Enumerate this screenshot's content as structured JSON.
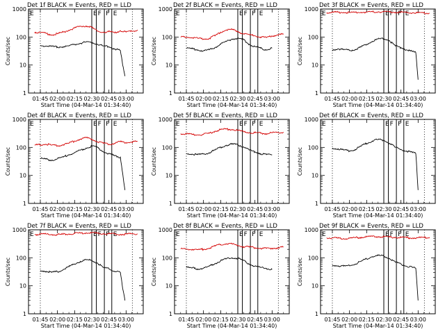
{
  "colors": {
    "black": "#000000",
    "red": "#d40000",
    "background": "#ffffff"
  },
  "chart_data": [
    {
      "type": "line",
      "title": "Det 1f BLACK = Events, RED = LLD",
      "xlabel": "Start Time (04-Mar-14 01:34:40)",
      "ylabel": "Counts/sec",
      "yscale": "log",
      "ylim": [
        1,
        1000
      ],
      "ytick_labels": [
        "1",
        "10",
        "100",
        "1000"
      ],
      "xtick_labels": [
        "01:45",
        "02:00",
        "02:15",
        "02:30",
        "02:45",
        "03:00"
      ],
      "flag_labels": [
        "E",
        "F",
        "F",
        "E"
      ],
      "series": [
        {
          "color": "#d40000",
          "x": [
            "01:40",
            "01:45",
            "01:50",
            "01:55",
            "02:00",
            "02:05",
            "02:10",
            "02:15",
            "02:20",
            "02:25",
            "02:30",
            "02:35",
            "02:40",
            "02:45",
            "02:50",
            "02:55",
            "03:00",
            "03:05",
            "03:10"
          ],
          "y": [
            150,
            145,
            135,
            120,
            130,
            150,
            175,
            210,
            240,
            250,
            220,
            160,
            150,
            155,
            140,
            170,
            150,
            160,
            180
          ]
        },
        {
          "color": "#000000",
          "x": [
            "01:45",
            "01:50",
            "01:55",
            "02:00",
            "02:05",
            "02:10",
            "02:15",
            "02:20",
            "02:25",
            "02:30",
            "02:35",
            "02:40",
            "02:45",
            "02:50",
            "02:55",
            "02:57",
            "02:59"
          ],
          "y": [
            50,
            48,
            46,
            44,
            45,
            48,
            55,
            60,
            66,
            65,
            55,
            48,
            45,
            38,
            33,
            10,
            4
          ]
        }
      ]
    },
    {
      "type": "line",
      "title": "Det 2f BLACK = Events, RED = LLD",
      "xlabel": "Start Time (04-Mar-14 01:34:40)",
      "ylabel": "Counts/sec",
      "yscale": "log",
      "ylim": [
        1,
        1000
      ],
      "ytick_labels": [
        "1",
        "10",
        "100",
        "1000"
      ],
      "xtick_labels": [
        "01:45",
        "02:00",
        "02:15",
        "02:30",
        "02:45",
        "03:00"
      ],
      "flag_labels": [
        "E",
        "F",
        "F",
        "E"
      ],
      "series": [
        {
          "color": "#d40000",
          "x": [
            "01:40",
            "01:45",
            "01:50",
            "01:55",
            "02:00",
            "02:05",
            "02:10",
            "02:15",
            "02:20",
            "02:25",
            "02:30",
            "02:35",
            "02:40",
            "02:45",
            "02:50",
            "02:55",
            "03:00",
            "03:05",
            "03:10"
          ],
          "y": [
            100,
            100,
            95,
            90,
            85,
            90,
            110,
            150,
            180,
            185,
            160,
            130,
            120,
            110,
            100,
            95,
            110,
            120,
            125
          ]
        },
        {
          "color": "#000000",
          "x": [
            "01:45",
            "01:50",
            "01:55",
            "02:00",
            "02:05",
            "02:10",
            "02:15",
            "02:20",
            "02:25",
            "02:30",
            "02:35",
            "02:40",
            "02:45",
            "02:50",
            "02:55",
            "03:00"
          ],
          "y": [
            40,
            38,
            35,
            32,
            35,
            42,
            55,
            70,
            85,
            90,
            80,
            55,
            45,
            40,
            35,
            40
          ]
        }
      ]
    },
    {
      "type": "line",
      "title": "Det 3f BLACK = Events, RED = LLD",
      "xlabel": "Start Time (04-Mar-14 01:34:40)",
      "ylabel": "Counts/sec",
      "yscale": "log",
      "ylim": [
        1,
        1000
      ],
      "ytick_labels": [
        "1",
        "10",
        "100",
        "1000"
      ],
      "xtick_labels": [
        "01:45",
        "02:00",
        "02:15",
        "02:30",
        "02:45",
        "03:00"
      ],
      "flag_labels": [
        "E",
        "F",
        "F",
        "E"
      ],
      "series": [
        {
          "color": "#d40000",
          "x": [
            "01:40",
            "01:45",
            "01:50",
            "01:55",
            "02:00",
            "02:05",
            "02:10",
            "02:15",
            "02:20",
            "02:25",
            "02:30",
            "02:35",
            "02:40",
            "02:45",
            "02:50",
            "02:55",
            "03:00",
            "03:05",
            "03:10"
          ],
          "y": [
            750,
            760,
            770,
            760,
            750,
            760,
            770,
            780,
            790,
            800,
            790,
            780,
            770,
            760,
            750,
            740,
            730,
            720,
            710
          ]
        },
        {
          "color": "#000000",
          "x": [
            "01:45",
            "01:50",
            "01:55",
            "02:00",
            "02:05",
            "02:10",
            "02:15",
            "02:20",
            "02:25",
            "02:30",
            "02:35",
            "02:40",
            "02:45",
            "02:50",
            "02:55",
            "02:58",
            "03:00"
          ],
          "y": [
            35,
            38,
            35,
            33,
            36,
            44,
            55,
            70,
            85,
            88,
            75,
            48,
            42,
            35,
            30,
            28,
            3
          ]
        }
      ]
    },
    {
      "type": "line",
      "title": "Det 4f BLACK = Events, RED = LLD",
      "xlabel": "Start Time (04-Mar-14 01:34:40)",
      "ylabel": "Counts/sec",
      "yscale": "log",
      "ylim": [
        1,
        1000
      ],
      "ytick_labels": [
        "1",
        "10",
        "100",
        "1000"
      ],
      "xtick_labels": [
        "01:45",
        "02:00",
        "02:15",
        "02:30",
        "02:45",
        "03:00"
      ],
      "flag_labels": [
        "E",
        "F",
        "F",
        "E"
      ],
      "series": [
        {
          "color": "#d40000",
          "x": [
            "01:40",
            "01:45",
            "01:50",
            "01:55",
            "02:00",
            "02:05",
            "02:10",
            "02:15",
            "02:20",
            "02:25",
            "02:30",
            "02:35",
            "02:40",
            "02:45",
            "02:50",
            "02:55",
            "03:00",
            "03:05",
            "03:10"
          ],
          "y": [
            120,
            125,
            130,
            120,
            115,
            125,
            140,
            170,
            200,
            220,
            200,
            160,
            140,
            130,
            140,
            160,
            150,
            155,
            165
          ]
        },
        {
          "color": "#000000",
          "x": [
            "01:45",
            "01:50",
            "01:55",
            "02:00",
            "02:05",
            "02:10",
            "02:15",
            "02:20",
            "02:25",
            "02:30",
            "02:35",
            "02:40",
            "02:45",
            "02:50",
            "02:55",
            "02:57",
            "02:59"
          ],
          "y": [
            40,
            38,
            35,
            40,
            45,
            55,
            65,
            80,
            95,
            110,
            100,
            70,
            60,
            50,
            45,
            12,
            3
          ]
        }
      ]
    },
    {
      "type": "line",
      "title": "Det 5f BLACK = Events, RED = LLD",
      "xlabel": "Start Time (04-Mar-14 01:34:40)",
      "ylabel": "Counts/sec",
      "yscale": "log",
      "ylim": [
        1,
        1000
      ],
      "ytick_labels": [
        "1",
        "10",
        "100",
        "1000"
      ],
      "xtick_labels": [
        "01:45",
        "02:00",
        "02:15",
        "02:30",
        "02:45",
        "03:00"
      ],
      "flag_labels": [
        "E",
        "F",
        "F",
        "E"
      ],
      "series": [
        {
          "color": "#d40000",
          "x": [
            "01:40",
            "01:45",
            "01:50",
            "01:55",
            "02:00",
            "02:05",
            "02:10",
            "02:15",
            "02:20",
            "02:25",
            "02:30",
            "02:35",
            "02:40",
            "02:45",
            "02:50",
            "02:55",
            "03:00",
            "03:05",
            "03:10"
          ],
          "y": [
            310,
            300,
            290,
            280,
            290,
            320,
            380,
            430,
            450,
            440,
            400,
            360,
            340,
            330,
            320,
            310,
            330,
            340,
            350
          ]
        },
        {
          "color": "#000000",
          "x": [
            "01:45",
            "01:50",
            "01:55",
            "02:00",
            "02:05",
            "02:10",
            "02:15",
            "02:20",
            "02:25",
            "02:30",
            "02:35",
            "02:40",
            "02:45",
            "02:50",
            "02:55",
            "03:00"
          ],
          "y": [
            60,
            58,
            55,
            58,
            65,
            80,
            100,
            120,
            130,
            125,
            105,
            80,
            70,
            60,
            55,
            55
          ]
        }
      ]
    },
    {
      "type": "line",
      "title": "Det 6f BLACK = Events, RED = LLD",
      "xlabel": "Start Time (04-Mar-14 01:34:40)",
      "ylabel": "Counts/sec",
      "yscale": "log",
      "ylim": [
        1,
        1000
      ],
      "ytick_labels": [
        "1",
        "10",
        "100",
        "1000"
      ],
      "xtick_labels": [
        "01:45",
        "02:00",
        "02:15",
        "02:30",
        "02:45",
        "03:00"
      ],
      "flag_labels": [
        "E",
        "F",
        "F",
        "E"
      ],
      "series": [
        {
          "color": "#000000",
          "x": [
            "01:45",
            "01:50",
            "01:55",
            "02:00",
            "02:05",
            "02:10",
            "02:15",
            "02:20",
            "02:25",
            "02:30",
            "02:35",
            "02:40",
            "02:45",
            "02:50",
            "02:55",
            "02:58",
            "03:00"
          ],
          "y": [
            95,
            90,
            80,
            75,
            85,
            110,
            140,
            170,
            190,
            180,
            140,
            100,
            85,
            75,
            65,
            60,
            3
          ]
        }
      ]
    },
    {
      "type": "line",
      "title": "Det 7f BLACK = Events, RED = LLD",
      "xlabel": "Start Time (04-Mar-14 01:34:40)",
      "ylabel": "Counts/sec",
      "yscale": "log",
      "ylim": [
        1,
        1000
      ],
      "ytick_labels": [
        "1",
        "10",
        "100",
        "1000"
      ],
      "xtick_labels": [
        "01:45",
        "02:00",
        "02:15",
        "02:30",
        "02:45",
        "03:00"
      ],
      "flag_labels": [
        "E",
        "F",
        "F",
        "E"
      ],
      "series": [
        {
          "color": "#d40000",
          "x": [
            "01:40",
            "01:45",
            "01:50",
            "01:55",
            "02:00",
            "02:05",
            "02:10",
            "02:15",
            "02:20",
            "02:25",
            "02:30",
            "02:35",
            "02:40",
            "02:45",
            "02:50",
            "02:55",
            "03:00",
            "03:05",
            "03:10"
          ],
          "y": [
            680,
            690,
            700,
            680,
            670,
            690,
            710,
            740,
            760,
            780,
            770,
            750,
            730,
            720,
            700,
            690,
            700,
            710,
            720
          ]
        },
        {
          "color": "#000000",
          "x": [
            "01:45",
            "01:50",
            "01:55",
            "02:00",
            "02:05",
            "02:10",
            "02:15",
            "02:20",
            "02:25",
            "02:30",
            "02:35",
            "02:40",
            "02:45",
            "02:50",
            "02:55",
            "02:57",
            "02:59"
          ],
          "y": [
            35,
            33,
            30,
            32,
            38,
            48,
            60,
            75,
            85,
            80,
            65,
            45,
            40,
            33,
            30,
            8,
            3
          ]
        }
      ]
    },
    {
      "type": "line",
      "title": "Det 8f BLACK = Events, RED = LLD",
      "xlabel": "Start Time (04-Mar-14 01:34:40)",
      "ylabel": "Counts/sec",
      "yscale": "log",
      "ylim": [
        1,
        1000
      ],
      "ytick_labels": [
        "1",
        "10",
        "100",
        "1000"
      ],
      "xtick_labels": [
        "01:45",
        "02:00",
        "02:15",
        "02:30",
        "02:45",
        "03:00"
      ],
      "flag_labels": [
        "E",
        "F",
        "F",
        "E"
      ],
      "series": [
        {
          "color": "#d40000",
          "x": [
            "01:40",
            "01:45",
            "01:50",
            "01:55",
            "02:00",
            "02:05",
            "02:10",
            "02:15",
            "02:20",
            "02:25",
            "02:30",
            "02:35",
            "02:40",
            "02:45",
            "02:50",
            "02:55",
            "03:00",
            "03:05",
            "03:10"
          ],
          "y": [
            210,
            205,
            200,
            195,
            200,
            220,
            260,
            300,
            320,
            310,
            280,
            250,
            240,
            230,
            220,
            215,
            220,
            230,
            240
          ]
        },
        {
          "color": "#000000",
          "x": [
            "01:45",
            "01:50",
            "01:55",
            "02:00",
            "02:05",
            "02:10",
            "02:15",
            "02:20",
            "02:25",
            "02:30",
            "02:35",
            "02:40",
            "02:45",
            "02:50",
            "02:55",
            "03:00"
          ],
          "y": [
            45,
            43,
            40,
            42,
            50,
            62,
            78,
            92,
            100,
            95,
            80,
            60,
            50,
            45,
            42,
            38
          ]
        }
      ]
    },
    {
      "type": "line",
      "title": "Det 9f BLACK = Events, RED = LLD",
      "xlabel": "Start Time (04-Mar-14 01:34:40)",
      "ylabel": "Counts/sec",
      "yscale": "log",
      "ylim": [
        1,
        1000
      ],
      "ytick_labels": [
        "1",
        "10",
        "100",
        "1000"
      ],
      "xtick_labels": [
        "01:45",
        "02:00",
        "02:15",
        "02:30",
        "02:45",
        "03:00"
      ],
      "flag_labels": [
        "E",
        "F",
        "F",
        "E"
      ],
      "series": [
        {
          "color": "#d40000",
          "x": [
            "01:40",
            "01:45",
            "01:50",
            "01:55",
            "02:00",
            "02:05",
            "02:10",
            "02:15",
            "02:20",
            "02:25",
            "02:30",
            "02:35",
            "02:40",
            "02:45",
            "02:50",
            "02:55",
            "03:00",
            "03:05",
            "03:10"
          ],
          "y": [
            520,
            510,
            500,
            490,
            500,
            520,
            540,
            560,
            580,
            570,
            560,
            550,
            540,
            530,
            520,
            510,
            520,
            530,
            540
          ]
        },
        {
          "color": "#000000",
          "x": [
            "01:45",
            "01:50",
            "01:55",
            "02:00",
            "02:05",
            "02:10",
            "02:15",
            "02:20",
            "02:25",
            "02:30",
            "02:35",
            "02:40",
            "02:45",
            "02:50",
            "02:55",
            "02:58",
            "03:00"
          ],
          "y": [
            55,
            52,
            50,
            52,
            60,
            75,
            92,
            110,
            120,
            115,
            95,
            70,
            60,
            50,
            45,
            42,
            3
          ]
        }
      ]
    }
  ]
}
